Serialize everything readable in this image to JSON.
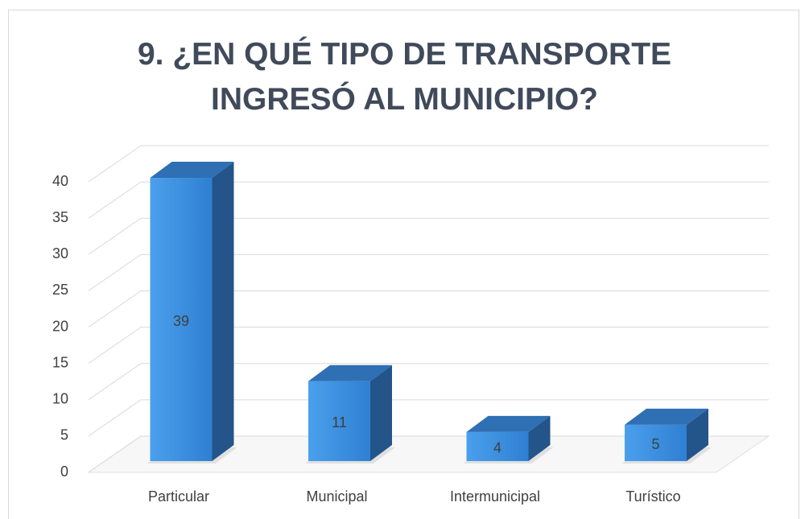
{
  "chart_data": {
    "type": "bar",
    "title": "9. ¿EN QUÉ TIPO DE TRANSPORTE INGRESÓ AL MUNICIPIO?",
    "categories": [
      "Particular",
      "Municipal",
      "Intermunicipal",
      "Turístico"
    ],
    "values": [
      39,
      11,
      4,
      5
    ],
    "color": "#3a8ee0",
    "ylim": [
      0,
      40
    ],
    "yticks": [
      0,
      5,
      10,
      15,
      20,
      25,
      30,
      35,
      40
    ],
    "grid": true
  }
}
